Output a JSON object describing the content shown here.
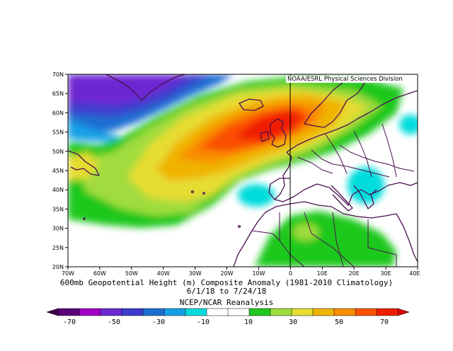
{
  "credit": "NOAA/ESRL Physical Sciences Division",
  "caption": {
    "line1": "600mb Geopotential Height (m) Composite Anomaly (1981-2010 Climatology)",
    "line2": "6/1/18  to 7/24/18",
    "line3": "NCEP/NCAR Reanalysis"
  },
  "axes": {
    "lat_labels": [
      "70N",
      "65N",
      "60N",
      "55N",
      "50N",
      "45N",
      "40N",
      "35N",
      "30N",
      "25N",
      "20N"
    ],
    "lon_labels": [
      "70W",
      "60W",
      "50W",
      "40W",
      "30W",
      "20W",
      "10W",
      "0",
      "10E",
      "20E",
      "30E",
      "40E"
    ]
  },
  "legend": {
    "labels": [
      "-70",
      "-50",
      "-30",
      "-10",
      "10",
      "30",
      "50",
      "70"
    ],
    "colors": [
      "#5a0078",
      "#a000c8",
      "#6e28d2",
      "#3c3ccd",
      "#1e6ed2",
      "#14a0e6",
      "#00dcdc",
      "#ffffff",
      "#ffffff",
      "#1ec81e",
      "#a0dc3c",
      "#e6dc32",
      "#f0b400",
      "#fa8c00",
      "#fa5000",
      "#f01e00"
    ]
  }
}
